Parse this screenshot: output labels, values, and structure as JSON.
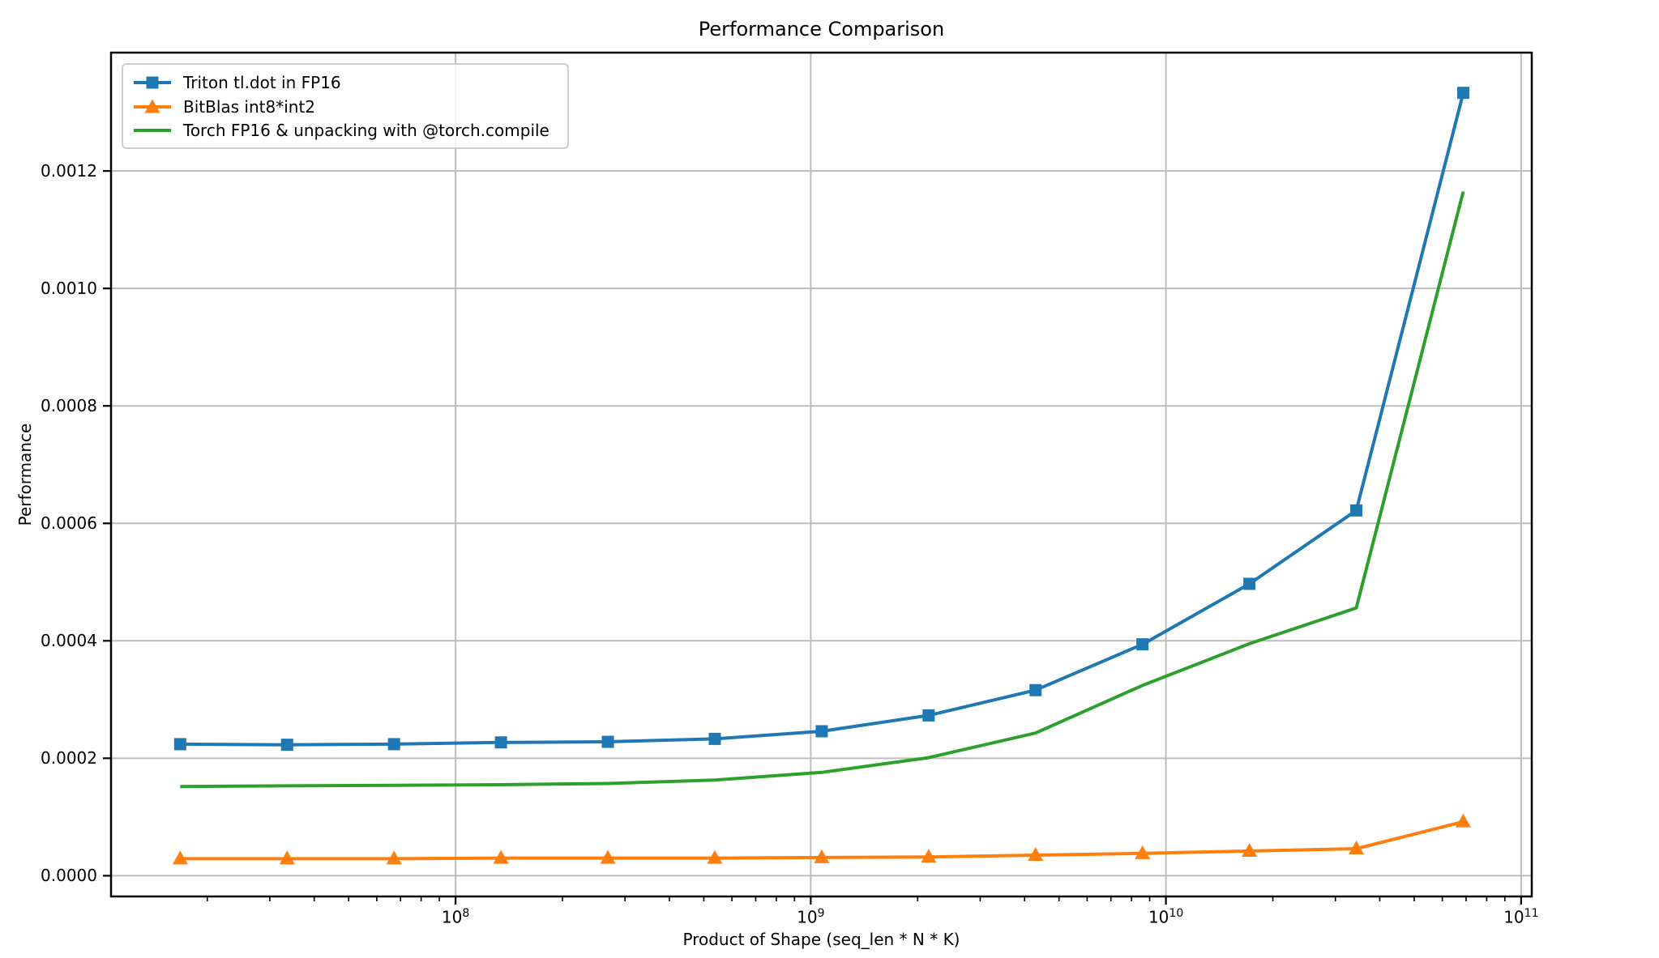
{
  "chart_data": {
    "type": "line",
    "title": "Performance Comparison",
    "xlabel": "Product of Shape (seq_len * N * K)",
    "ylabel": "Performance",
    "x_scale": "log10",
    "grid": true,
    "legend_position": "upper left",
    "xlim_log10": [
      7.03,
      11.03
    ],
    "ylim": [
      -3.53e-05,
      0.0014015
    ],
    "x": [
      16777216,
      33554432,
      67108864,
      134217728,
      268435456,
      536870912,
      1073741824,
      2147483648,
      4294967296,
      8589934592,
      17179869184,
      34359738368,
      68719476736
    ],
    "series": [
      {
        "name": "Triton tl.dot in FP16",
        "color": "#1f77b4",
        "marker": "square",
        "values": [
          0.000224,
          0.000223,
          0.000224,
          0.000227,
          0.000228,
          0.000233,
          0.000246,
          0.000273,
          0.000316,
          0.000394,
          0.000497,
          0.000622,
          0.001333
        ]
      },
      {
        "name": "BitBlas int8*int2",
        "color": "#ff7f0e",
        "marker": "triangle-up",
        "values": [
          2.9e-05,
          2.9e-05,
          2.9e-05,
          3e-05,
          3e-05,
          3e-05,
          3.1e-05,
          3.2e-05,
          3.5e-05,
          3.8e-05,
          4.2e-05,
          4.6e-05,
          9.2e-05
        ]
      },
      {
        "name": "Torch FP16 & unpacking with @torch.compile",
        "color": "#2ca02c",
        "marker": "none",
        "values": [
          0.000152,
          0.000153,
          0.000154,
          0.000155,
          0.000157,
          0.000163,
          0.000176,
          0.000201,
          0.000243,
          0.000324,
          0.000395,
          0.000456,
          0.001165
        ]
      }
    ],
    "x_ticks": [
      {
        "base": "10",
        "exp": "8",
        "value": 100000000
      },
      {
        "base": "10",
        "exp": "9",
        "value": 1000000000
      },
      {
        "base": "10",
        "exp": "10",
        "value": 10000000000
      },
      {
        "base": "10",
        "exp": "11",
        "value": 100000000000
      }
    ],
    "y_ticks": [
      {
        "label": "0.0000",
        "value": 0.0
      },
      {
        "label": "0.0002",
        "value": 0.0002
      },
      {
        "label": "0.0004",
        "value": 0.0004
      },
      {
        "label": "0.0006",
        "value": 0.0006
      },
      {
        "label": "0.0008",
        "value": 0.0008
      },
      {
        "label": "0.0010",
        "value": 0.001
      },
      {
        "label": "0.0012",
        "value": 0.0012
      }
    ],
    "colors": {
      "grid": "#bdbdbd",
      "spine": "#000000",
      "legend_border": "#cccccc"
    }
  }
}
